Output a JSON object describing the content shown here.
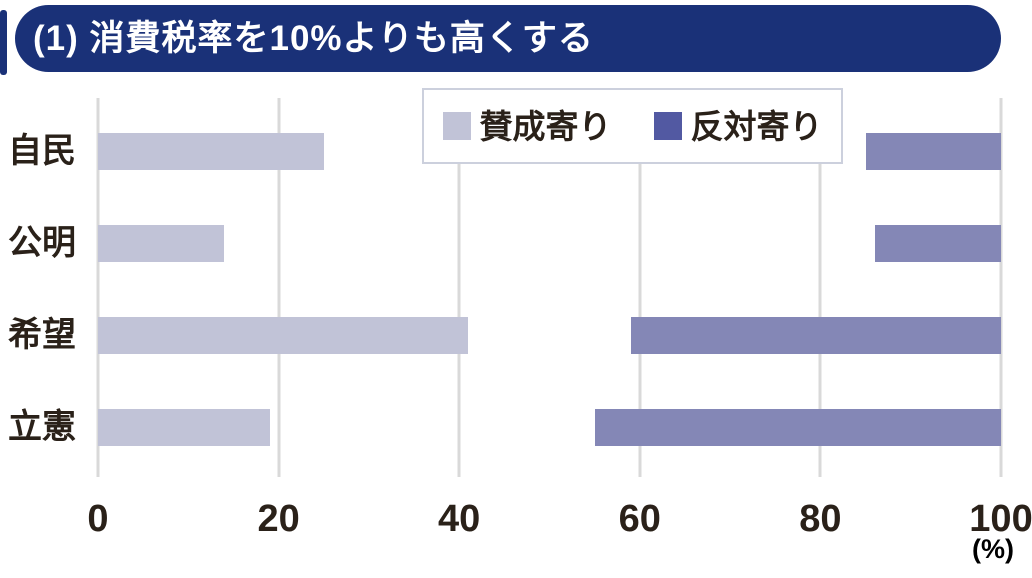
{
  "banner": {
    "label": "(1) 消費税率を10%よりも高くする",
    "bg_color": "#1a3178",
    "text_color": "#ffffff"
  },
  "legend": {
    "items": [
      {
        "key": "agree",
        "label": "賛成寄り",
        "swatch_color": "#c1c3d7"
      },
      {
        "key": "oppose",
        "label": "反対寄り",
        "swatch_color": "#5259a2"
      }
    ]
  },
  "chart_data": {
    "type": "bar",
    "orientation": "horizontal",
    "title": "(1) 消費税率を10%よりも高くする",
    "categories": [
      "自民",
      "公明",
      "希望",
      "立憲"
    ],
    "series": [
      {
        "key": "agree",
        "name": "賛成寄り",
        "values": [
          25,
          14,
          41,
          19
        ],
        "color": "#c1c3d7",
        "anchor": "left"
      },
      {
        "key": "oppose",
        "name": "反対寄り",
        "values": [
          15,
          14,
          41,
          45
        ],
        "color": "#8487b6",
        "anchor": "right"
      }
    ],
    "xlim": [
      0,
      100
    ],
    "x_ticks": [
      0,
      20,
      40,
      60,
      80,
      100
    ],
    "unit_label": "(%)",
    "grid": true,
    "legend_position": "top"
  },
  "colors": {
    "grid": "#d9d9d9",
    "text": "#2a2119",
    "background": "#ffffff"
  }
}
